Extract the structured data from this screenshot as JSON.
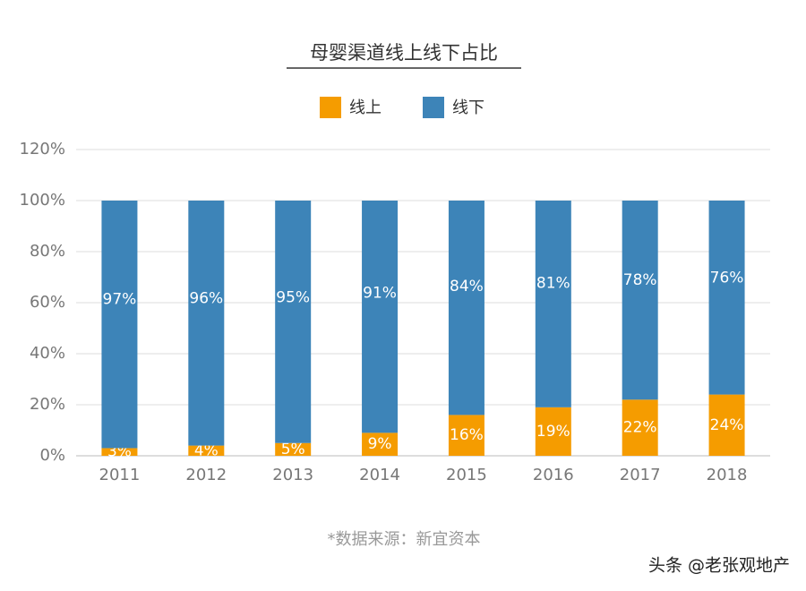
{
  "chart_data": {
    "type": "stacked_bar",
    "title": "母婴渠道线上线下占比",
    "categories": [
      "2011",
      "2012",
      "2013",
      "2014",
      "2015",
      "2016",
      "2017",
      "2018"
    ],
    "series": [
      {
        "name": "线上",
        "color": "#f59c00",
        "values": [
          3,
          4,
          5,
          9,
          16,
          19,
          22,
          24
        ],
        "value_labels": [
          "3%",
          "4%",
          "5%",
          "9%",
          "16%",
          "19%",
          "22%",
          "24%"
        ]
      },
      {
        "name": "线下",
        "color": "#3d84b8",
        "values": [
          97,
          96,
          95,
          91,
          84,
          81,
          78,
          76
        ],
        "value_labels": [
          "97%",
          "96%",
          "95%",
          "91%",
          "84%",
          "81%",
          "78%",
          "76%"
        ]
      }
    ],
    "ylim": [
      0,
      120
    ],
    "yticks": [
      {
        "value": 0,
        "label": "0%"
      },
      {
        "value": 20,
        "label": "20%"
      },
      {
        "value": 40,
        "label": "40%"
      },
      {
        "value": 60,
        "label": "60%"
      },
      {
        "value": 80,
        "label": "80%"
      },
      {
        "value": 100,
        "label": "100%"
      },
      {
        "value": 120,
        "label": "120%"
      }
    ],
    "grid": true,
    "legend": "top"
  },
  "source": "*数据来源：新宜资本",
  "watermark": "头条 @老张观地产"
}
